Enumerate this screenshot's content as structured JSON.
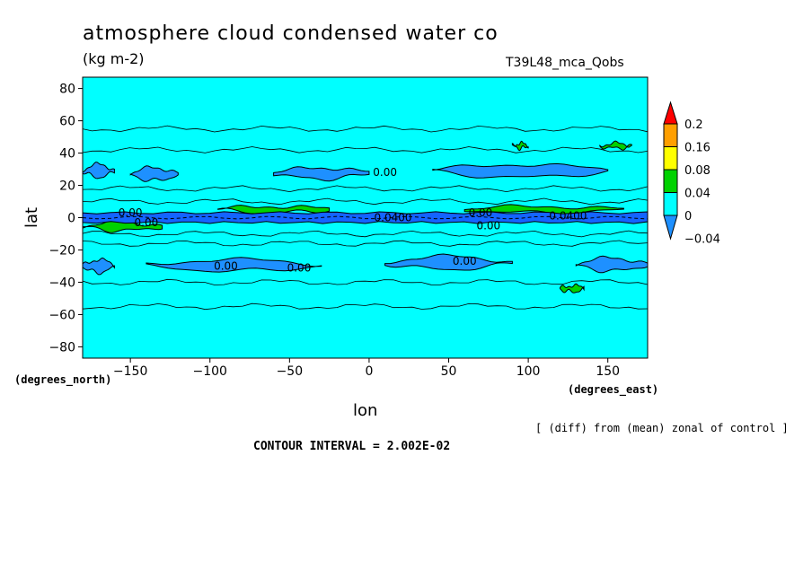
{
  "chart_data": {
    "type": "heatmap",
    "title": "atmosphere cloud condensed water co",
    "units": "(kg m-2)",
    "run_label": "T39L48_mca_Qobs",
    "xlabel": "lon",
    "ylabel": "lat",
    "x_units_label": "(degrees_east)",
    "y_units_label": "(degrees_north)",
    "xlim": [
      -180,
      175
    ],
    "ylim": [
      -87,
      87
    ],
    "x_ticks": [
      -150,
      -100,
      -50,
      0,
      50,
      100,
      150
    ],
    "x_tick_labels": [
      "−150",
      "−100",
      "−50",
      "0",
      "50",
      "100",
      "150"
    ],
    "y_ticks": [
      -80,
      -60,
      -40,
      -20,
      0,
      20,
      40,
      60,
      80
    ],
    "y_tick_labels": [
      "−80",
      "−60",
      "−40",
      "−20",
      "0",
      "20",
      "40",
      "60",
      "80"
    ],
    "colorbar": {
      "levels": [
        -0.04,
        0,
        0.04,
        0.08,
        0.16,
        0.2
      ],
      "labels": [
        "−0.04",
        "0",
        "0.04",
        "0.08",
        "0.16",
        "0.2"
      ],
      "colors": [
        "#1e90ff",
        "#00ffff",
        "#00d200",
        "#ffff00",
        "#ff9f00",
        "#ff0000"
      ],
      "under_color": "#1e90ff",
      "over_color": "#ff0000"
    },
    "background_color": "#00ffff",
    "contour_labels": [
      {
        "lon": 10,
        "lat": 28,
        "text": "0.00"
      },
      {
        "lon": -90,
        "lat": -30,
        "text": "0.00"
      },
      {
        "lon": -44,
        "lat": -31,
        "text": "0.00"
      },
      {
        "lon": 60,
        "lat": -27,
        "text": "0.00"
      },
      {
        "lon": -150,
        "lat": 3,
        "text": "0.00"
      },
      {
        "lon": -140,
        "lat": -3,
        "text": "0.00"
      },
      {
        "lon": 15,
        "lat": 0,
        "text": "0.0400"
      },
      {
        "lon": 70,
        "lat": 3,
        "text": "0.00"
      },
      {
        "lon": 75,
        "lat": -5,
        "text": "0.00"
      },
      {
        "lon": 125,
        "lat": 1,
        "text": "0.0400"
      }
    ],
    "features": {
      "blue_equatorial_band": {
        "lat_min": -3,
        "lat_max": 3,
        "value": -0.04
      },
      "blue_patches": [
        {
          "lon_min": -180,
          "lon_max": -160,
          "lat_min": 25,
          "lat_max": 33
        },
        {
          "lon_min": -150,
          "lon_max": -120,
          "lat_min": 23,
          "lat_max": 31
        },
        {
          "lon_min": -60,
          "lon_max": 0,
          "lat_min": 24,
          "lat_max": 31
        },
        {
          "lon_min": 40,
          "lon_max": 150,
          "lat_min": 25,
          "lat_max": 33
        },
        {
          "lon_min": -180,
          "lon_max": -160,
          "lat_min": -34,
          "lat_max": -26
        },
        {
          "lon_min": -140,
          "lon_max": -30,
          "lat_min": -33,
          "lat_max": -26
        },
        {
          "lon_min": 10,
          "lon_max": 90,
          "lat_min": -32,
          "lat_max": -24
        },
        {
          "lon_min": 130,
          "lon_max": 175,
          "lat_min": -33,
          "lat_max": -25
        }
      ],
      "green_patches": [
        {
          "lon_min": -180,
          "lon_max": -130,
          "lat_min": -8,
          "lat_max": -3
        },
        {
          "lon_min": 60,
          "lon_max": 160,
          "lat_min": 3,
          "lat_max": 7
        },
        {
          "lon_min": -95,
          "lon_max": -25,
          "lat_min": 3,
          "lat_max": 7
        },
        {
          "lon_min": 120,
          "lon_max": 135,
          "lat_min": -46,
          "lat_max": -42
        },
        {
          "lon_min": 90,
          "lon_max": 100,
          "lat_min": 43,
          "lat_max": 46
        },
        {
          "lon_min": 145,
          "lon_max": 165,
          "lat_min": 43,
          "lat_max": 46
        }
      ]
    },
    "grid": false,
    "legend_placement": "right"
  },
  "annotations": {
    "diff_note": "[ (diff) from (mean) zonal of control ]",
    "contour_interval": "CONTOUR INTERVAL = 2.002E-02"
  }
}
